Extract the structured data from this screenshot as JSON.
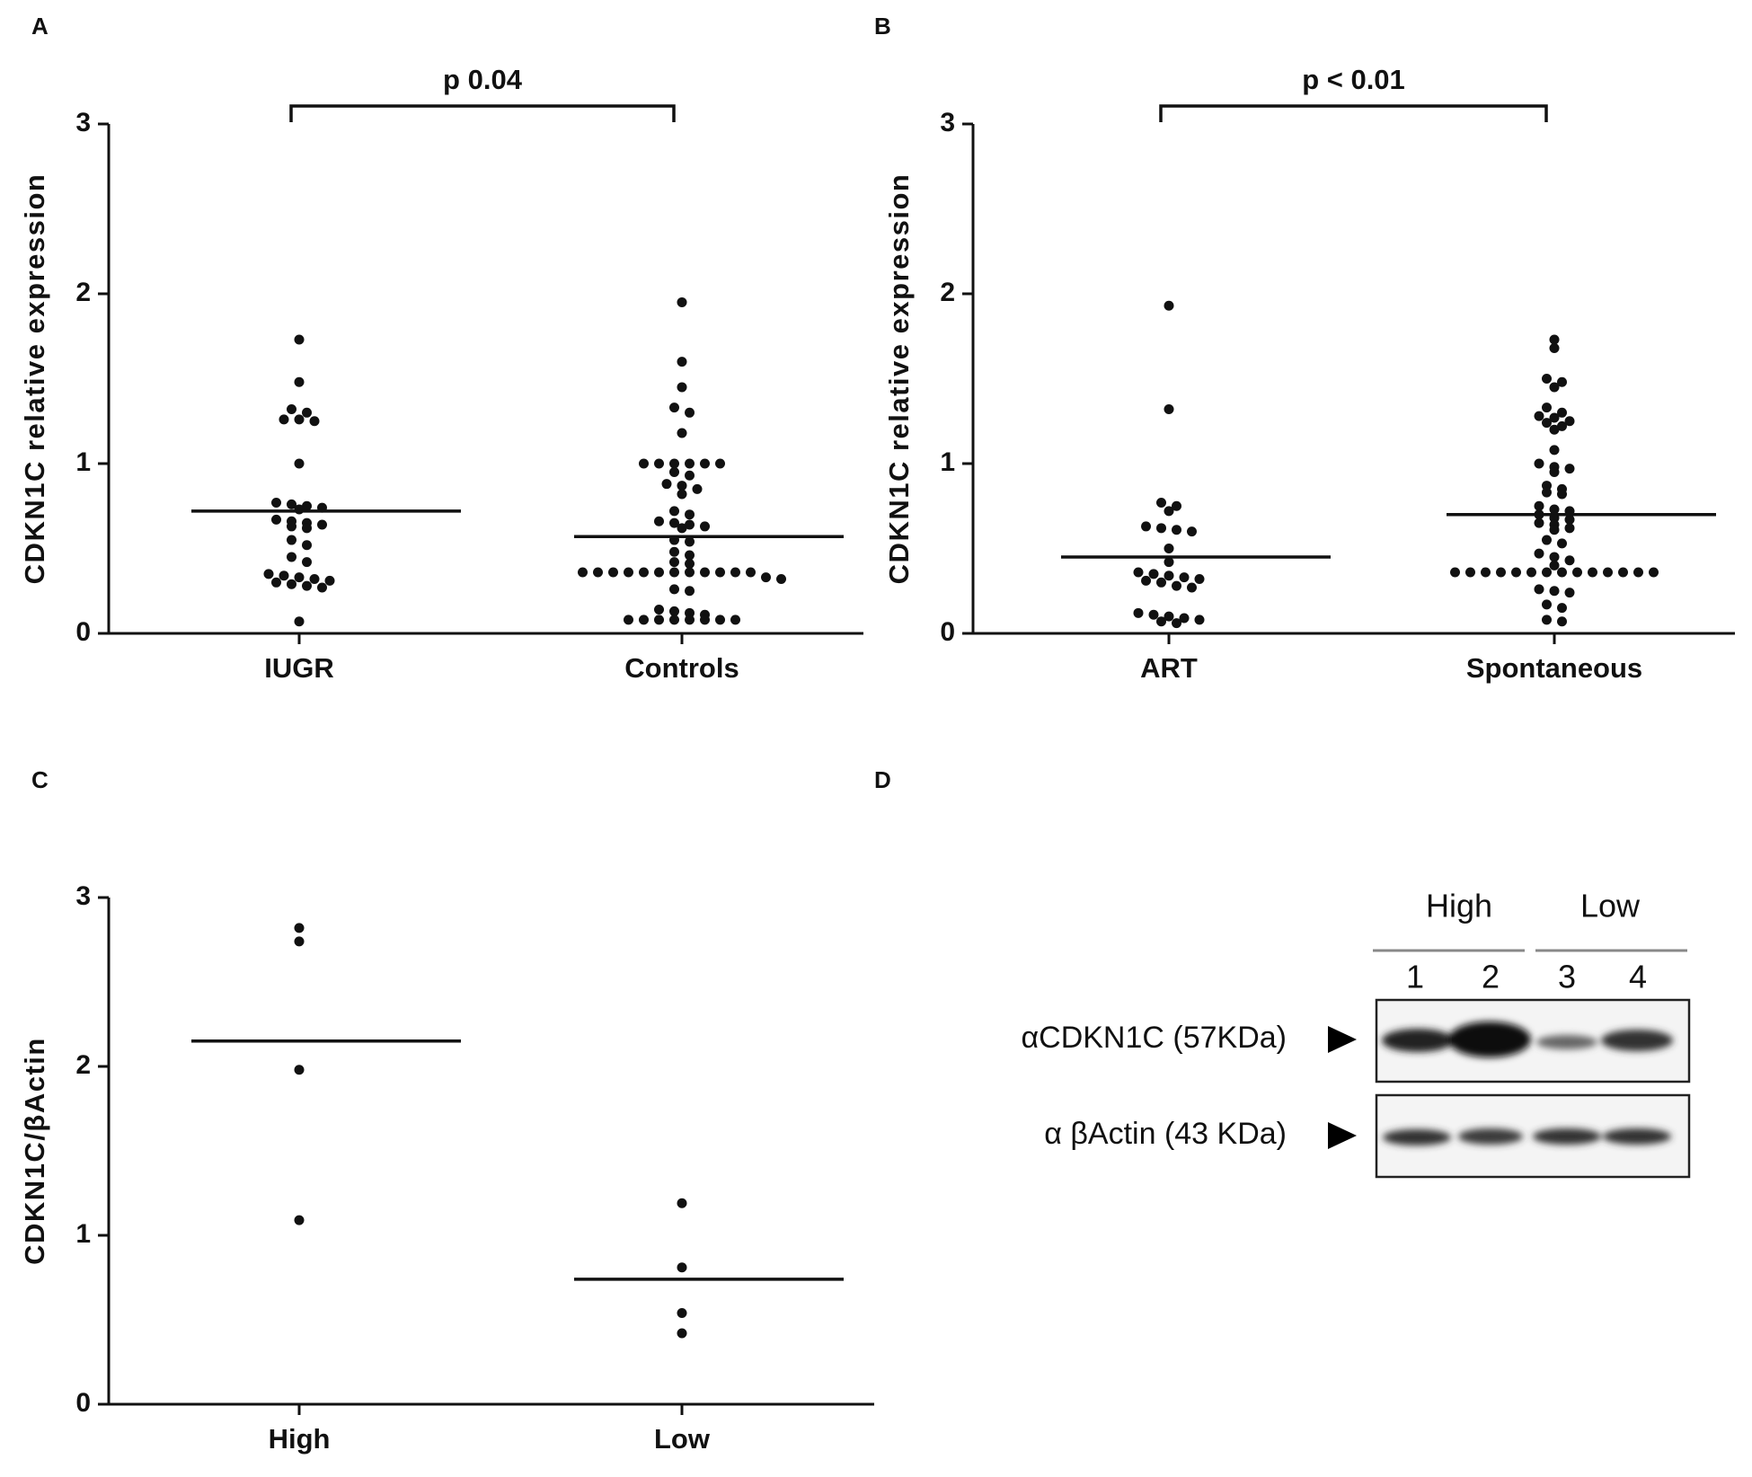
{
  "chart_data": [
    {
      "type": "dot",
      "panel": "A",
      "ylabel": "CDKN1C relative expression",
      "annotation": "p 0.04",
      "categories": [
        "IUGR",
        "Controls"
      ],
      "values": [
        [
          1.73,
          1.48,
          1.32,
          1.3,
          1.26,
          1.25,
          1.26,
          1.0,
          0.77,
          0.76,
          0.75,
          0.74,
          0.73,
          0.67,
          0.66,
          0.65,
          0.64,
          0.63,
          0.62,
          0.55,
          0.52,
          0.45,
          0.42,
          0.35,
          0.34,
          0.33,
          0.32,
          0.31,
          0.3,
          0.29,
          0.28,
          0.27,
          0.07
        ],
        [
          1.95,
          1.6,
          1.45,
          1.33,
          1.3,
          1.18,
          1.0,
          1.0,
          1.0,
          1.0,
          1.0,
          1.0,
          0.95,
          0.93,
          0.88,
          0.87,
          0.85,
          0.82,
          0.72,
          0.7,
          0.66,
          0.65,
          0.64,
          0.63,
          0.62,
          0.55,
          0.54,
          0.48,
          0.46,
          0.42,
          0.41,
          0.36,
          0.36,
          0.36,
          0.36,
          0.36,
          0.36,
          0.36,
          0.36,
          0.36,
          0.36,
          0.36,
          0.36,
          0.33,
          0.32,
          0.26,
          0.25,
          0.14,
          0.13,
          0.12,
          0.11,
          0.08,
          0.08,
          0.08,
          0.08,
          0.08,
          0.08,
          0.08,
          0.08
        ]
      ],
      "means": [
        0.72,
        0.57
      ],
      "ylim": [
        0,
        3
      ],
      "yticks": [
        0,
        1,
        2,
        3
      ]
    },
    {
      "type": "dot",
      "panel": "B",
      "ylabel": "CDKN1C relative expression",
      "annotation": "p < 0.01",
      "categories": [
        "ART",
        "Spontaneous"
      ],
      "values": [
        [
          1.93,
          1.32,
          0.77,
          0.75,
          0.72,
          0.63,
          0.62,
          0.61,
          0.6,
          0.5,
          0.42,
          0.36,
          0.35,
          0.34,
          0.33,
          0.32,
          0.31,
          0.3,
          0.28,
          0.27,
          0.12,
          0.11,
          0.1,
          0.09,
          0.08,
          0.07,
          0.06
        ],
        [
          1.73,
          1.68,
          1.5,
          1.48,
          1.45,
          1.33,
          1.3,
          1.28,
          1.27,
          1.25,
          1.24,
          1.22,
          1.2,
          1.08,
          1.0,
          0.98,
          0.97,
          0.95,
          0.87,
          0.85,
          0.83,
          0.82,
          0.75,
          0.73,
          0.72,
          0.7,
          0.68,
          0.67,
          0.65,
          0.64,
          0.62,
          0.61,
          0.55,
          0.53,
          0.47,
          0.45,
          0.43,
          0.4,
          0.36,
          0.36,
          0.36,
          0.36,
          0.36,
          0.36,
          0.36,
          0.36,
          0.36,
          0.36,
          0.36,
          0.36,
          0.36,
          0.36,
          0.26,
          0.25,
          0.24,
          0.17,
          0.15,
          0.08,
          0.07
        ]
      ],
      "means": [
        0.45,
        0.7
      ],
      "ylim": [
        0,
        3
      ],
      "yticks": [
        0,
        1,
        2,
        3
      ]
    },
    {
      "type": "dot",
      "panel": "C",
      "ylabel": "CDKN1C/βActin",
      "categories": [
        "High",
        "Low"
      ],
      "values": [
        [
          2.82,
          2.74,
          1.98,
          1.09
        ],
        [
          1.19,
          0.81,
          0.54,
          0.42
        ]
      ],
      "means": [
        2.15,
        0.74
      ],
      "ylim": [
        0,
        3
      ],
      "yticks": [
        0,
        1,
        2,
        3
      ]
    }
  ],
  "blot": {
    "panel": "D",
    "groups": [
      "High",
      "Low"
    ],
    "lanes": [
      "1",
      "2",
      "3",
      "4"
    ],
    "rows": [
      "αCDKN1C (57KDa)",
      "α βActin (43 KDa)"
    ]
  }
}
